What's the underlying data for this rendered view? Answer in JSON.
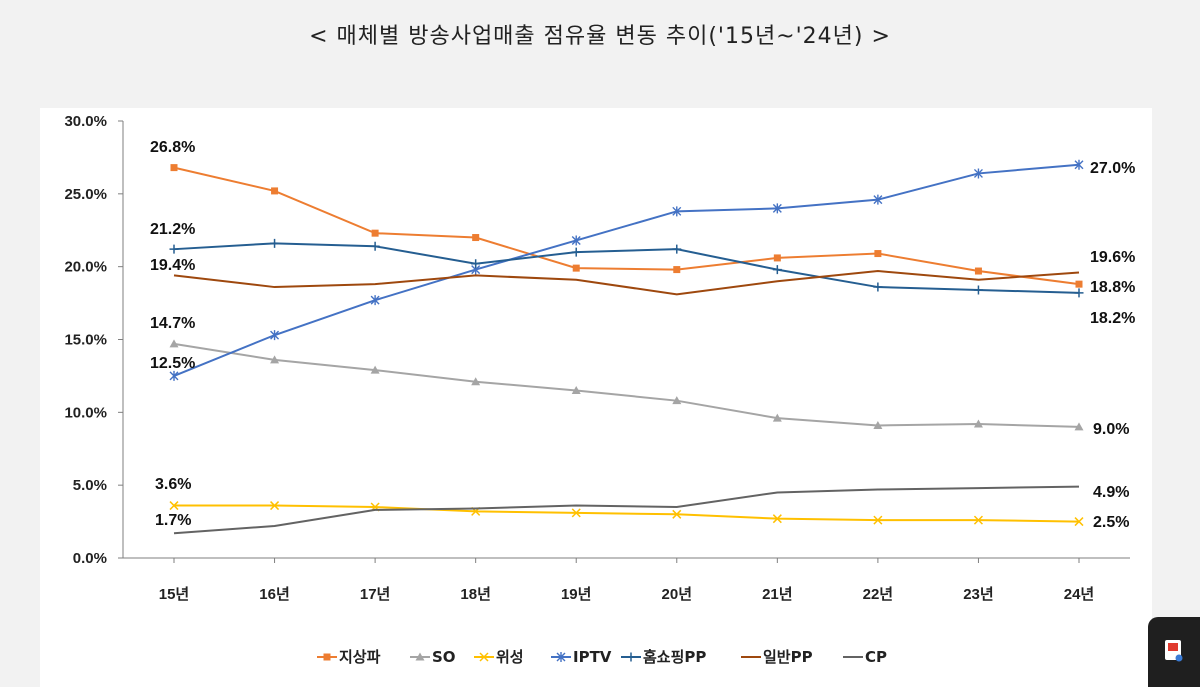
{
  "title": "<  매체별  방송사업매출  점유율  변동  추이('15년~'24년)  >",
  "colors": {
    "background": "#f2f2f2",
    "plot_background": "#ffffff",
    "axis": "#7f7f7f"
  },
  "chart_data": {
    "type": "line",
    "title": "<  매체별  방송사업매출  점유율  변동  추이('15년~'24년)  >",
    "categories": [
      "15년",
      "16년",
      "17년",
      "18년",
      "19년",
      "20년",
      "21년",
      "22년",
      "23년",
      "24년"
    ],
    "ylim": [
      0,
      30
    ],
    "yticks": [
      0,
      5,
      10,
      15,
      20,
      25,
      30
    ],
    "ytick_labels": [
      "0.0%",
      "5.0%",
      "10.0%",
      "15.0%",
      "20.0%",
      "25.0%",
      "30.0%"
    ],
    "grid": false,
    "legend_position": "bottom",
    "series": [
      {
        "name": "지상파",
        "color": "#ed7d31",
        "marker": "square",
        "values": [
          26.8,
          25.2,
          22.3,
          22.0,
          19.9,
          19.8,
          20.6,
          20.9,
          19.7,
          18.8
        ],
        "start_label": "26.8%",
        "end_label": "18.8%"
      },
      {
        "name": "SO",
        "color": "#a5a5a5",
        "marker": "triangle",
        "values": [
          14.7,
          13.6,
          12.9,
          12.1,
          11.5,
          10.8,
          9.6,
          9.1,
          9.2,
          9.0
        ],
        "start_label": "14.7%",
        "end_label": "9.0%"
      },
      {
        "name": "위성",
        "color": "#ffc000",
        "marker": "x",
        "values": [
          3.6,
          3.6,
          3.5,
          3.2,
          3.1,
          3.0,
          2.7,
          2.6,
          2.6,
          2.5
        ],
        "start_label": "3.6%",
        "end_label": "2.5%"
      },
      {
        "name": "IPTV",
        "color": "#4472c4",
        "marker": "star",
        "values": [
          12.5,
          15.3,
          17.7,
          19.8,
          21.8,
          23.8,
          24.0,
          24.6,
          26.4,
          27.0
        ],
        "start_label": "12.5%",
        "end_label": "27.0%"
      },
      {
        "name": "홈쇼핑PP",
        "color": "#255e91",
        "marker": "plus",
        "values": [
          21.2,
          21.6,
          21.4,
          20.2,
          21.0,
          21.2,
          19.8,
          18.6,
          18.4,
          18.2
        ],
        "start_label": "21.2%",
        "end_label": "18.2%"
      },
      {
        "name": "일반PP",
        "color": "#9e480e",
        "marker": "none",
        "values": [
          19.4,
          18.6,
          18.8,
          19.4,
          19.1,
          18.1,
          19.0,
          19.7,
          19.1,
          19.6
        ],
        "start_label": "19.4%",
        "end_label": "19.6%"
      },
      {
        "name": "CP",
        "color": "#636363",
        "marker": "none",
        "values": [
          1.7,
          2.2,
          3.3,
          3.4,
          3.6,
          3.5,
          4.5,
          4.7,
          4.8,
          4.9
        ],
        "start_label": "1.7%",
        "end_label": "4.9%"
      }
    ]
  }
}
